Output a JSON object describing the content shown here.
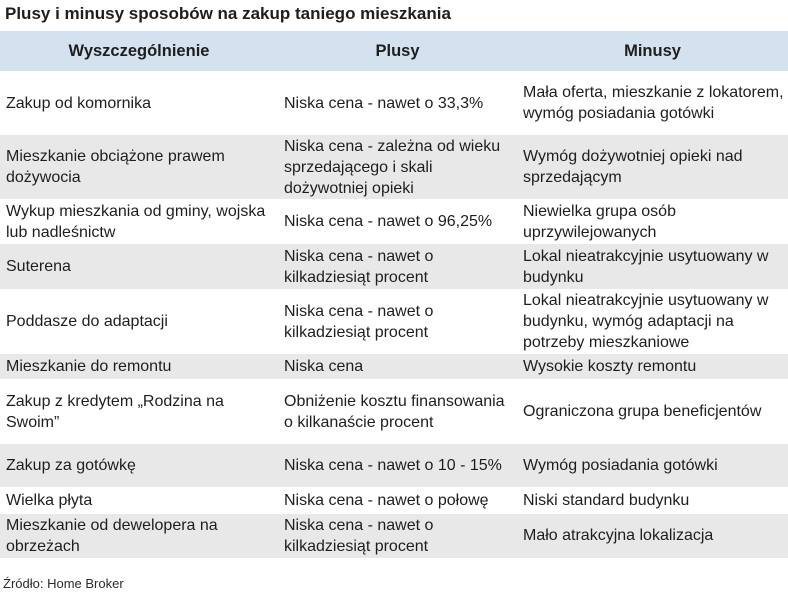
{
  "title": "Plusy i minusy sposobów na zakup taniego mieszkania",
  "table": {
    "headers": [
      "Wyszczególnienie",
      "Plusy",
      "Minusy"
    ],
    "rows": [
      [
        "Zakup od komornika",
        "Niska cena - nawet o 33,3%",
        "Mała oferta, mieszkanie z lokatorem, wymóg posiadania gotówki"
      ],
      [
        "Mieszkanie obciążone prawem dożywocia",
        "Niska cena - zależna od wieku sprzedającego i skali dożywotniej opieki",
        "Wymóg dożywotniej opieki nad sprzedającym"
      ],
      [
        "Wykup mieszkania od gminy, wojska lub nadleśnictw",
        "Niska cena - nawet o 96,25%",
        "Niewielka grupa osób uprzywilejowanych"
      ],
      [
        "Suterena",
        "Niska cena - nawet o kilkadziesiąt procent",
        "Lokal nieatrakcyjnie usytuowany w budynku"
      ],
      [
        "Poddasze do adaptacji",
        "Niska cena - nawet o kilkadziesiąt procent",
        "Lokal nieatrakcyjnie usytuowany w budynku, wymóg adaptacji na potrzeby mieszkaniowe"
      ],
      [
        "Mieszkanie do remontu",
        "Niska cena",
        "Wysokie koszty remontu"
      ],
      [
        "Zakup z kredytem „Rodzina na Swoim”",
        "Obniżenie kosztu finansowania o kilkanaście procent",
        "Ograniczona grupa beneficjentów"
      ],
      [
        "Zakup za gotówkę",
        "Niska cena - nawet o 10 - 15%",
        "Wymóg posiadania gotówki"
      ],
      [
        "Wielka płyta",
        "Niska cena - nawet o połowę",
        "Niski standard budynku"
      ],
      [
        "Mieszkanie od dewelopera na obrzeżach",
        "Niska cena - nawet o kilkadziesiąt procent",
        "Mało atrakcyjna lokalizacja"
      ]
    ]
  },
  "source": "Źródło: Home Broker",
  "colors": {
    "header_bg": "#d4e1ef",
    "row_alt_bg": "#e8e8e8",
    "row_bg": "#ffffff",
    "text": "#1e1e1e"
  }
}
